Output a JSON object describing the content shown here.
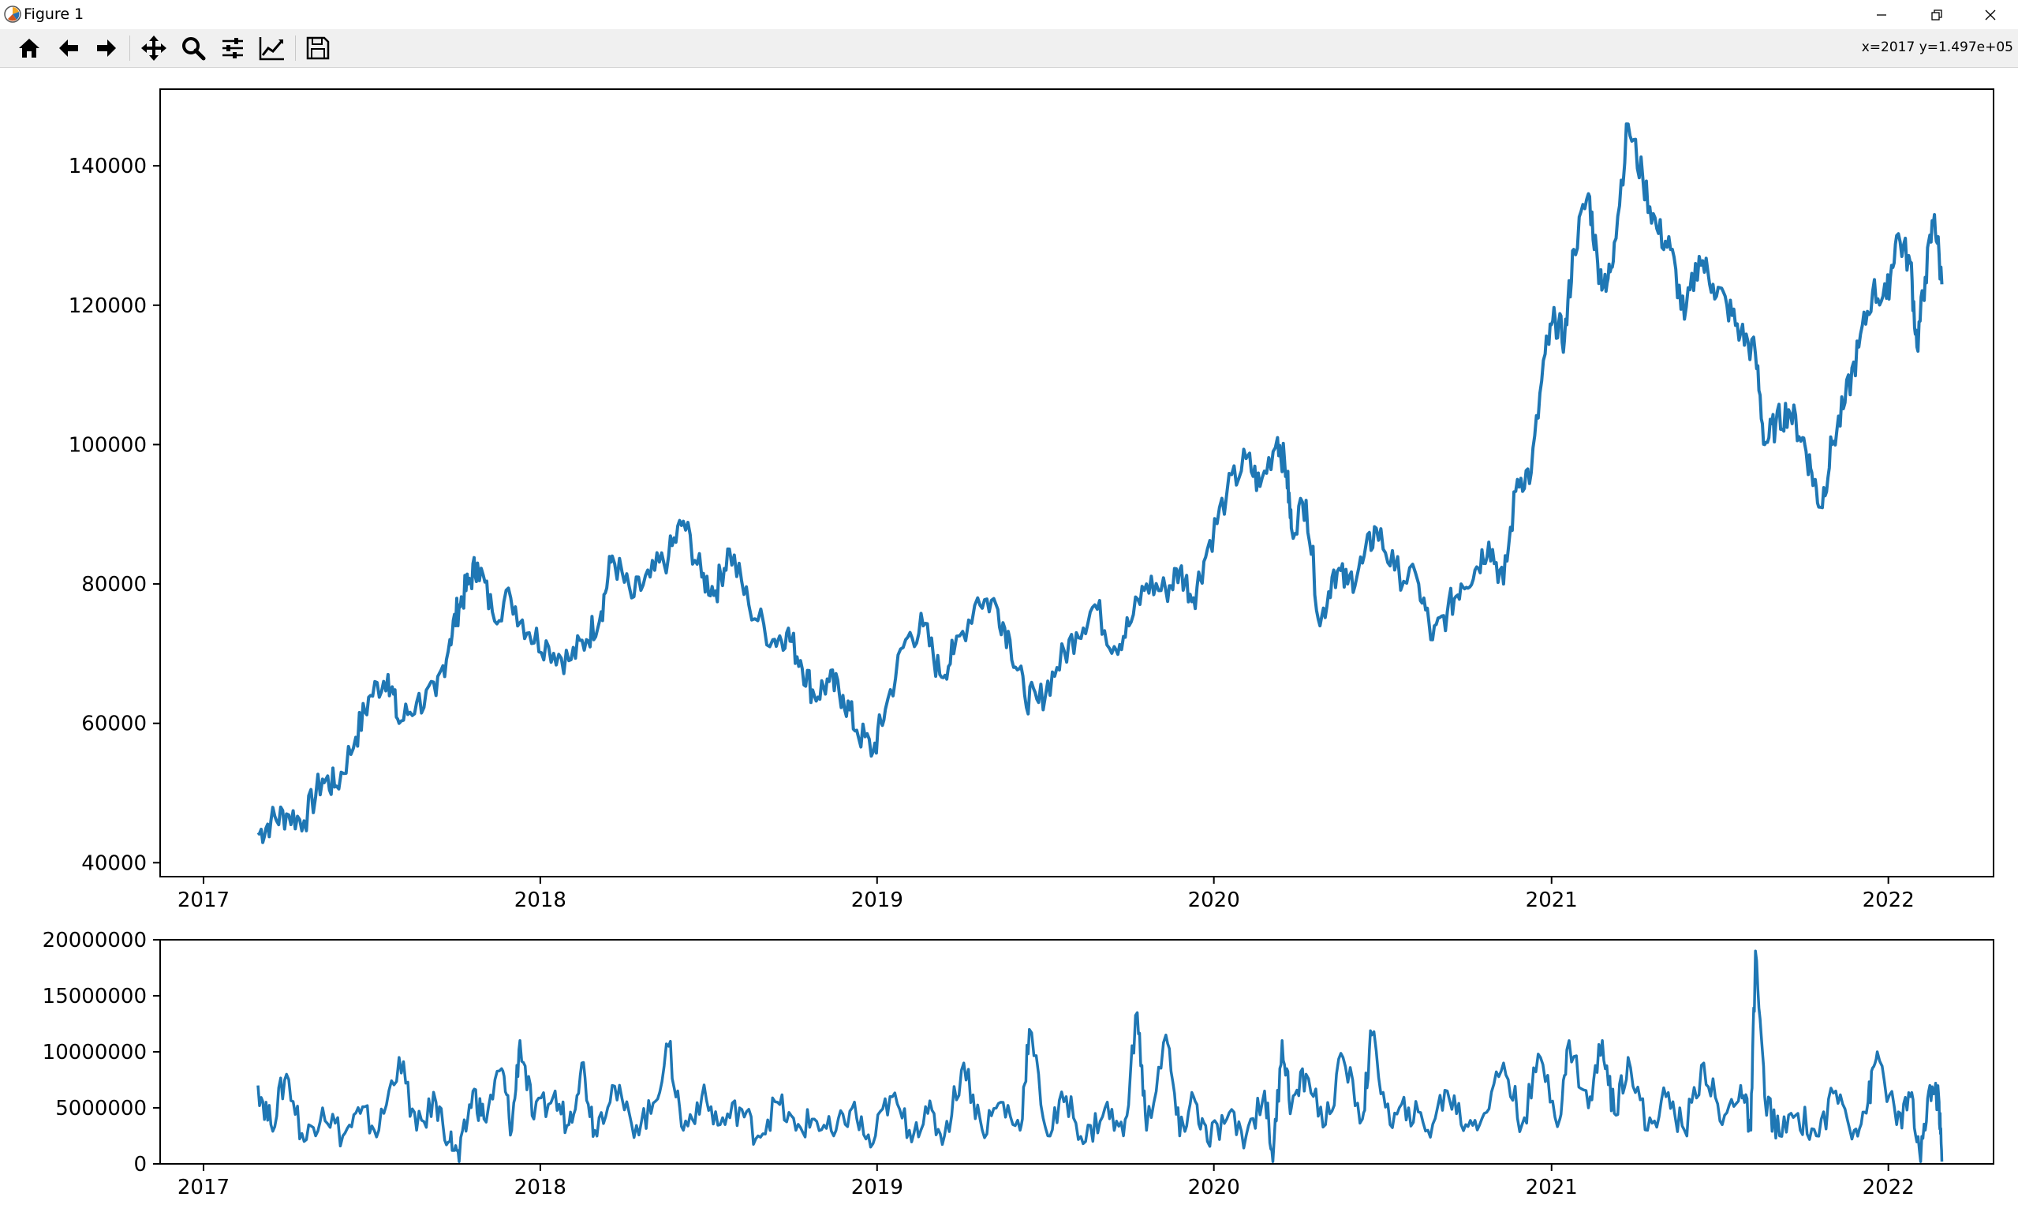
{
  "window": {
    "title": "Figure 1"
  },
  "toolbar": {
    "tools": [
      "home-icon",
      "back-icon",
      "forward-icon",
      "pan-icon",
      "zoom-icon",
      "configure-subplots-icon",
      "edit-axis-icon",
      "save-icon"
    ],
    "coords": "x=2017 y=1.497e+05"
  },
  "colors": {
    "line": "#1f77b4",
    "toolbar": "#f0f0f0"
  },
  "chart_data": [
    {
      "type": "line",
      "title": "",
      "xlabel": "",
      "ylabel": "",
      "x_ticks": [
        "2017",
        "2018",
        "2019",
        "2020",
        "2021",
        "2022"
      ],
      "y_ticks": [
        "40000",
        "60000",
        "80000",
        "100000",
        "120000",
        "140000"
      ],
      "xlim": [
        "2016-11-15",
        "2022-04-25"
      ],
      "ylim": [
        38000,
        151000
      ],
      "grid": false,
      "series": [
        {
          "x": [
            "2017-03-01",
            "2017-03-15",
            "2017-04-01",
            "2017-04-20",
            "2017-05-10",
            "2017-05-25",
            "2017-06-15",
            "2017-07-01",
            "2017-07-20",
            "2017-08-01",
            "2017-08-20",
            "2017-09-10",
            "2017-09-25",
            "2017-10-05",
            "2017-10-15",
            "2017-10-25",
            "2017-11-10",
            "2017-11-30",
            "2017-12-20",
            "2018-01-10",
            "2018-02-01",
            "2018-02-20",
            "2018-03-08",
            "2018-03-20",
            "2018-04-10",
            "2018-04-30",
            "2018-05-20",
            "2018-06-05",
            "2018-06-25",
            "2018-07-10",
            "2018-07-25",
            "2018-08-15",
            "2018-09-10",
            "2018-09-25",
            "2018-10-10",
            "2018-10-25",
            "2018-11-10",
            "2018-11-25",
            "2018-12-10",
            "2018-12-28",
            "2019-01-10",
            "2019-02-01",
            "2019-02-20",
            "2019-03-10",
            "2019-03-25",
            "2019-04-20",
            "2019-05-10",
            "2019-05-25",
            "2019-06-10",
            "2019-06-25",
            "2019-07-15",
            "2019-08-05",
            "2019-08-25",
            "2019-09-15",
            "2019-10-01",
            "2019-10-20",
            "2019-11-10",
            "2019-11-25",
            "2019-12-10",
            "2019-12-25",
            "2020-01-15",
            "2020-02-05",
            "2020-02-20",
            "2020-03-10",
            "2020-03-20",
            "2020-03-25",
            "2020-04-10",
            "2020-04-25",
            "2020-05-10",
            "2020-05-25",
            "2020-06-10",
            "2020-06-25",
            "2020-07-15",
            "2020-08-10",
            "2020-08-25",
            "2020-09-10",
            "2020-09-25",
            "2020-10-10",
            "2020-10-25",
            "2020-11-10",
            "2020-11-25",
            "2020-12-10",
            "2020-12-25",
            "2021-01-05",
            "2021-01-15",
            "2021-01-25",
            "2021-02-10",
            "2021-02-20",
            "2021-03-01",
            "2021-03-10",
            "2021-03-25",
            "2021-04-10",
            "2021-04-25",
            "2021-05-10",
            "2021-05-25",
            "2021-06-10",
            "2021-06-25",
            "2021-07-10",
            "2021-07-25",
            "2021-08-10",
            "2021-08-20",
            "2021-09-01",
            "2021-09-15",
            "2021-09-30",
            "2021-10-10",
            "2021-10-20",
            "2021-11-01",
            "2021-11-15",
            "2021-11-30",
            "2021-12-15",
            "2021-12-30",
            "2022-01-10",
            "2022-01-25",
            "2022-02-01",
            "2022-02-10",
            "2022-02-20",
            "2022-02-28"
          ],
          "y": [
            44000,
            46000,
            47000,
            46000,
            52000,
            51000,
            58000,
            64000,
            67000,
            60000,
            63000,
            64000,
            72000,
            77000,
            80000,
            83000,
            76000,
            78000,
            73000,
            71000,
            69000,
            72000,
            76000,
            84000,
            78000,
            81000,
            84000,
            89000,
            81000,
            79000,
            85000,
            77000,
            72000,
            73000,
            69000,
            64000,
            66000,
            64000,
            59000,
            56000,
            62000,
            72000,
            74000,
            67000,
            70000,
            78000,
            77000,
            72000,
            64000,
            63000,
            68000,
            73000,
            77000,
            71000,
            74000,
            80000,
            79000,
            82000,
            78000,
            85000,
            93000,
            98000,
            94000,
            101000,
            96000,
            88000,
            92000,
            74000,
            82000,
            80000,
            83000,
            88000,
            82000,
            80000,
            72000,
            76000,
            80000,
            82000,
            86000,
            80000,
            95000,
            96000,
            113000,
            118000,
            115000,
            128000,
            136000,
            126000,
            122000,
            129000,
            146000,
            138000,
            131000,
            128000,
            118000,
            127000,
            123000,
            120000,
            116000,
            113000,
            100000,
            103000,
            105000,
            101000,
            96000,
            91000,
            100000,
            106000,
            114000,
            122000,
            121000,
            130000,
            126000,
            114000,
            124000,
            133000,
            123000
          ]
        }
      ]
    },
    {
      "type": "line",
      "title": "",
      "xlabel": "",
      "ylabel": "",
      "x_ticks": [
        "2017",
        "2018",
        "2019",
        "2020",
        "2021",
        "2022"
      ],
      "y_ticks": [
        "0",
        "5000000",
        "10000000",
        "15000000",
        "20000000"
      ],
      "xlim": [
        "2016-11-15",
        "2022-04-25"
      ],
      "ylim": [
        0,
        20000000
      ],
      "grid": false,
      "series": [
        {
          "x": [
            "2017-03-01",
            "2017-03-15",
            "2017-04-01",
            "2017-04-20",
            "2017-05-10",
            "2017-06-01",
            "2017-06-20",
            "2017-07-10",
            "2017-08-01",
            "2017-08-20",
            "2017-09-10",
            "2017-09-25",
            "2017-10-05",
            "2017-10-20",
            "2017-11-01",
            "2017-11-20",
            "2017-12-01",
            "2017-12-10",
            "2017-12-25",
            "2018-01-15",
            "2018-02-01",
            "2018-02-15",
            "2018-03-01",
            "2018-03-20",
            "2018-04-10",
            "2018-05-01",
            "2018-05-20",
            "2018-06-05",
            "2018-06-25",
            "2018-07-15",
            "2018-08-05",
            "2018-08-25",
            "2018-09-15",
            "2018-10-05",
            "2018-10-25",
            "2018-11-15",
            "2018-12-05",
            "2018-12-25",
            "2019-01-15",
            "2019-02-05",
            "2019-02-25",
            "2019-03-15",
            "2019-04-05",
            "2019-04-25",
            "2019-05-15",
            "2019-06-05",
            "2019-06-15",
            "2019-07-05",
            "2019-07-25",
            "2019-08-15",
            "2019-09-05",
            "2019-09-25",
            "2019-10-10",
            "2019-10-20",
            "2019-11-10",
            "2019-11-25",
            "2019-12-10",
            "2019-12-25",
            "2020-01-15",
            "2020-02-05",
            "2020-02-25",
            "2020-03-05",
            "2020-03-15",
            "2020-03-25",
            "2020-04-10",
            "2020-05-01",
            "2020-05-20",
            "2020-06-10",
            "2020-06-20",
            "2020-07-10",
            "2020-07-30",
            "2020-08-20",
            "2020-09-10",
            "2020-09-30",
            "2020-10-20",
            "2020-11-10",
            "2020-11-30",
            "2020-12-20",
            "2021-01-10",
            "2021-01-20",
            "2021-02-10",
            "2021-02-25",
            "2021-03-10",
            "2021-03-25",
            "2021-04-15",
            "2021-05-05",
            "2021-05-25",
            "2021-06-15",
            "2021-07-05",
            "2021-07-25",
            "2021-08-05",
            "2021-08-10",
            "2021-08-20",
            "2021-09-05",
            "2021-09-25",
            "2021-10-15",
            "2021-11-05",
            "2021-11-25",
            "2021-12-10",
            "2021-12-20",
            "2022-01-10",
            "2022-01-25",
            "2022-02-05",
            "2022-02-15",
            "2022-02-25",
            "2022-02-28"
          ],
          "y": [
            7000000,
            3500000,
            8000000,
            2000000,
            5000000,
            2500000,
            4500000,
            3000000,
            9500000,
            3000000,
            5500000,
            2000000,
            200000,
            6500000,
            4000000,
            8500000,
            3000000,
            11000000,
            4000000,
            6000000,
            3500000,
            9000000,
            3000000,
            7000000,
            3500000,
            4500000,
            10500000,
            3000000,
            6000000,
            3500000,
            5000000,
            2500000,
            5500000,
            3000000,
            4000000,
            2500000,
            5000000,
            1500000,
            6000000,
            3000000,
            4500000,
            2500000,
            9000000,
            3000000,
            5500000,
            3000000,
            12000000,
            2500000,
            6000000,
            2000000,
            5000000,
            2500000,
            13500000,
            3000000,
            11500000,
            2500000,
            6000000,
            2000000,
            4000000,
            2500000,
            6500000,
            200000,
            11000000,
            5000000,
            8000000,
            3500000,
            9500000,
            4000000,
            11500000,
            3500000,
            5000000,
            3000000,
            6500000,
            3500000,
            4500000,
            9000000,
            3500000,
            9500000,
            4000000,
            11000000,
            5000000,
            11000000,
            4500000,
            9500000,
            3000000,
            6000000,
            3000000,
            9000000,
            3500000,
            7000000,
            3000000,
            19000000,
            6000000,
            2500000,
            4500000,
            2500000,
            6500000,
            3000000,
            5500000,
            10000000,
            3500000,
            6000000,
            200000,
            7000000,
            5500000,
            200000
          ]
        }
      ]
    }
  ]
}
